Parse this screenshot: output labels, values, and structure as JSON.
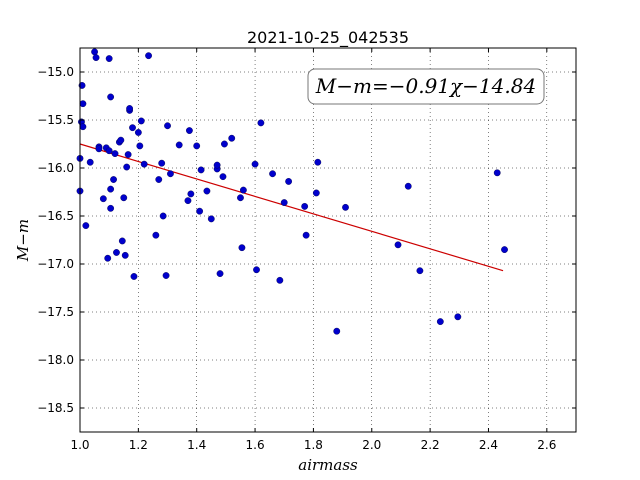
{
  "chart_data": {
    "type": "scatter",
    "title": "2021-10-25_042535",
    "xlabel": "airmass",
    "ylabel": "M−m",
    "xlim": [
      1.0,
      2.7
    ],
    "ylim": [
      -18.75,
      -14.75
    ],
    "y_inverted": true,
    "grid": true,
    "x_ticks": [
      1.0,
      1.2,
      1.4,
      1.6,
      1.8,
      2.0,
      2.2,
      2.4,
      2.6
    ],
    "x_tick_labels": [
      "1.0",
      "1.2",
      "1.4",
      "1.6",
      "1.8",
      "2.0",
      "2.2",
      "2.4",
      "2.6"
    ],
    "y_ticks": [
      -15.0,
      -15.5,
      -16.0,
      -16.5,
      -17.0,
      -17.5,
      -18.0,
      -18.5
    ],
    "y_tick_labels": [
      "−15.0",
      "−15.5",
      "−16.0",
      "−16.5",
      "−17.0",
      "−17.5",
      "−18.0",
      "−18.5"
    ],
    "annotation": "M−m=−0.91χ−14.84",
    "marker_color": "#0000cc",
    "fit_color": "#cc0000",
    "fit": {
      "slope": -0.91,
      "intercept": -14.84,
      "x": [
        1.0,
        2.45
      ]
    },
    "points": [
      [
        1.0,
        -15.9
      ],
      [
        1.0,
        -16.24
      ],
      [
        1.005,
        -15.52
      ],
      [
        1.007,
        -15.14
      ],
      [
        1.01,
        -15.33
      ],
      [
        1.01,
        -15.57
      ],
      [
        1.02,
        -16.6
      ],
      [
        1.035,
        -15.94
      ],
      [
        1.05,
        -14.79
      ],
      [
        1.055,
        -14.85
      ],
      [
        1.065,
        -15.78
      ],
      [
        1.065,
        -15.8
      ],
      [
        1.08,
        -16.32
      ],
      [
        1.09,
        -15.79
      ],
      [
        1.095,
        -16.94
      ],
      [
        1.1,
        -15.82
      ],
      [
        1.1,
        -14.86
      ],
      [
        1.105,
        -16.42
      ],
      [
        1.105,
        -16.22
      ],
      [
        1.105,
        -15.26
      ],
      [
        1.115,
        -16.12
      ],
      [
        1.12,
        -15.85
      ],
      [
        1.125,
        -16.88
      ],
      [
        1.135,
        -15.73
      ],
      [
        1.14,
        -15.71
      ],
      [
        1.145,
        -16.76
      ],
      [
        1.15,
        -16.31
      ],
      [
        1.155,
        -16.91
      ],
      [
        1.16,
        -15.99
      ],
      [
        1.165,
        -15.86
      ],
      [
        1.17,
        -15.4
      ],
      [
        1.17,
        -15.38
      ],
      [
        1.18,
        -15.58
      ],
      [
        1.185,
        -17.13
      ],
      [
        1.2,
        -15.63
      ],
      [
        1.205,
        -15.77
      ],
      [
        1.21,
        -15.51
      ],
      [
        1.22,
        -15.96
      ],
      [
        1.235,
        -14.83
      ],
      [
        1.26,
        -16.7
      ],
      [
        1.27,
        -16.12
      ],
      [
        1.28,
        -15.95
      ],
      [
        1.285,
        -16.5
      ],
      [
        1.295,
        -17.12
      ],
      [
        1.3,
        -15.56
      ],
      [
        1.31,
        -16.06
      ],
      [
        1.34,
        -15.76
      ],
      [
        1.37,
        -16.34
      ],
      [
        1.375,
        -15.61
      ],
      [
        1.38,
        -16.27
      ],
      [
        1.4,
        -15.77
      ],
      [
        1.41,
        -16.45
      ],
      [
        1.415,
        -16.02
      ],
      [
        1.435,
        -16.24
      ],
      [
        1.45,
        -16.53
      ],
      [
        1.47,
        -16.01
      ],
      [
        1.47,
        -15.97
      ],
      [
        1.48,
        -17.1
      ],
      [
        1.49,
        -16.09
      ],
      [
        1.495,
        -15.75
      ],
      [
        1.52,
        -15.69
      ],
      [
        1.55,
        -16.31
      ],
      [
        1.555,
        -16.83
      ],
      [
        1.56,
        -16.23
      ],
      [
        1.6,
        -15.96
      ],
      [
        1.605,
        -17.06
      ],
      [
        1.62,
        -15.53
      ],
      [
        1.66,
        -16.06
      ],
      [
        1.685,
        -17.17
      ],
      [
        1.7,
        -16.36
      ],
      [
        1.715,
        -16.14
      ],
      [
        1.77,
        -16.4
      ],
      [
        1.775,
        -16.7
      ],
      [
        1.81,
        -16.26
      ],
      [
        1.815,
        -15.94
      ],
      [
        1.88,
        -17.7
      ],
      [
        1.91,
        -16.41
      ],
      [
        2.09,
        -16.8
      ],
      [
        2.125,
        -16.19
      ],
      [
        2.165,
        -17.07
      ],
      [
        2.235,
        -17.6
      ],
      [
        2.295,
        -17.55
      ],
      [
        2.43,
        -16.05
      ],
      [
        2.455,
        -16.85
      ]
    ]
  }
}
